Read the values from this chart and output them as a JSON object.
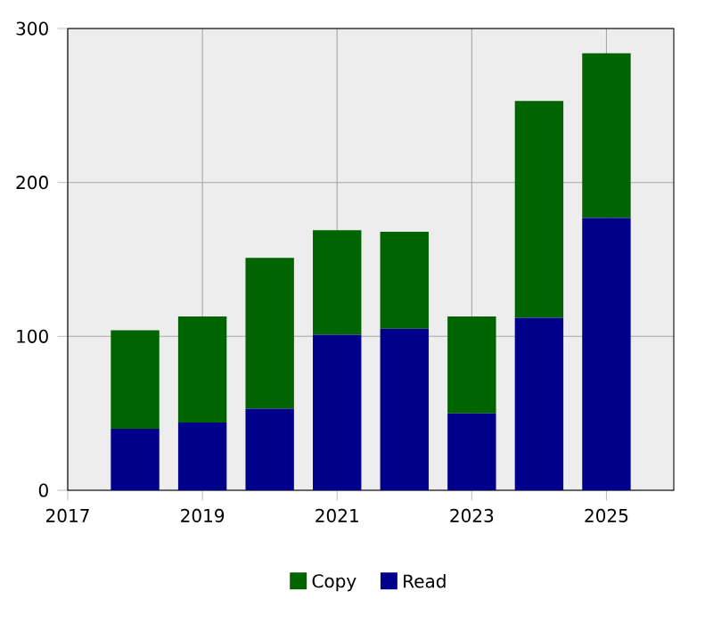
{
  "chart_data": {
    "type": "bar",
    "stacked": true,
    "x": [
      2018,
      2019,
      2020,
      2021,
      2022,
      2023,
      2024,
      2025
    ],
    "series": [
      {
        "name": "Read",
        "color": "#00008b",
        "values": [
          40,
          44,
          53,
          101,
          105,
          50,
          112,
          177
        ]
      },
      {
        "name": "Copy",
        "color": "#006400",
        "values": [
          64,
          69,
          98,
          68,
          63,
          63,
          141,
          107
        ]
      }
    ],
    "xlim": [
      2017,
      2026
    ],
    "xticks": [
      2017,
      2019,
      2021,
      2023,
      2025
    ],
    "ylim": [
      0,
      300
    ],
    "yticks": [
      0,
      100,
      200,
      300
    ],
    "grid": true,
    "legend": "bottom"
  }
}
